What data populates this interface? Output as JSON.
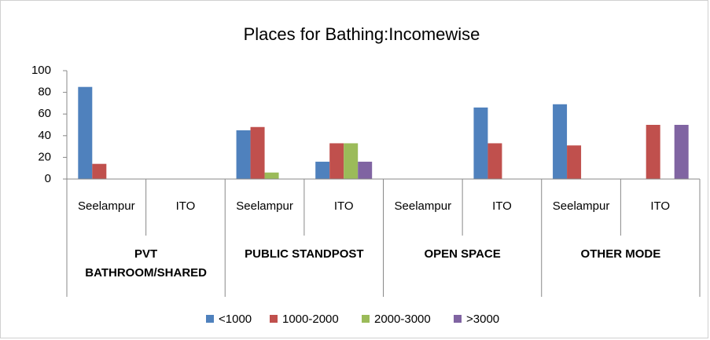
{
  "chart_data": {
    "type": "bar",
    "title": "Places for Bathing:Incomewise",
    "groups": [
      "PVT BATHROOM/SHARED",
      "PUBLIC STANDPOST",
      "OPEN SPACE",
      "OTHER MODE"
    ],
    "categories": [
      "Seelampur",
      "ITO",
      "Seelampur",
      "ITO",
      "Seelampur",
      "ITO",
      "Seelampur",
      "ITO"
    ],
    "series": [
      {
        "name": "<1000",
        "color": "#4f81bd",
        "values": [
          85,
          0,
          45,
          16,
          0,
          66,
          69,
          0
        ]
      },
      {
        "name": "1000-2000",
        "color": "#c0504d",
        "values": [
          14,
          0,
          48,
          33,
          0,
          33,
          31,
          50
        ]
      },
      {
        "name": "2000-3000",
        "color": "#9bbb59",
        "values": [
          0,
          0,
          6,
          33,
          0,
          0,
          0,
          0
        ]
      },
      {
        "name": ">3000",
        "color": "#8064a2",
        "values": [
          0,
          0,
          0,
          16,
          0,
          0,
          0,
          50
        ]
      }
    ],
    "ylim": [
      0,
      100
    ],
    "yticks": [
      0,
      20,
      40,
      60,
      80,
      100
    ],
    "legend": "bottom"
  }
}
